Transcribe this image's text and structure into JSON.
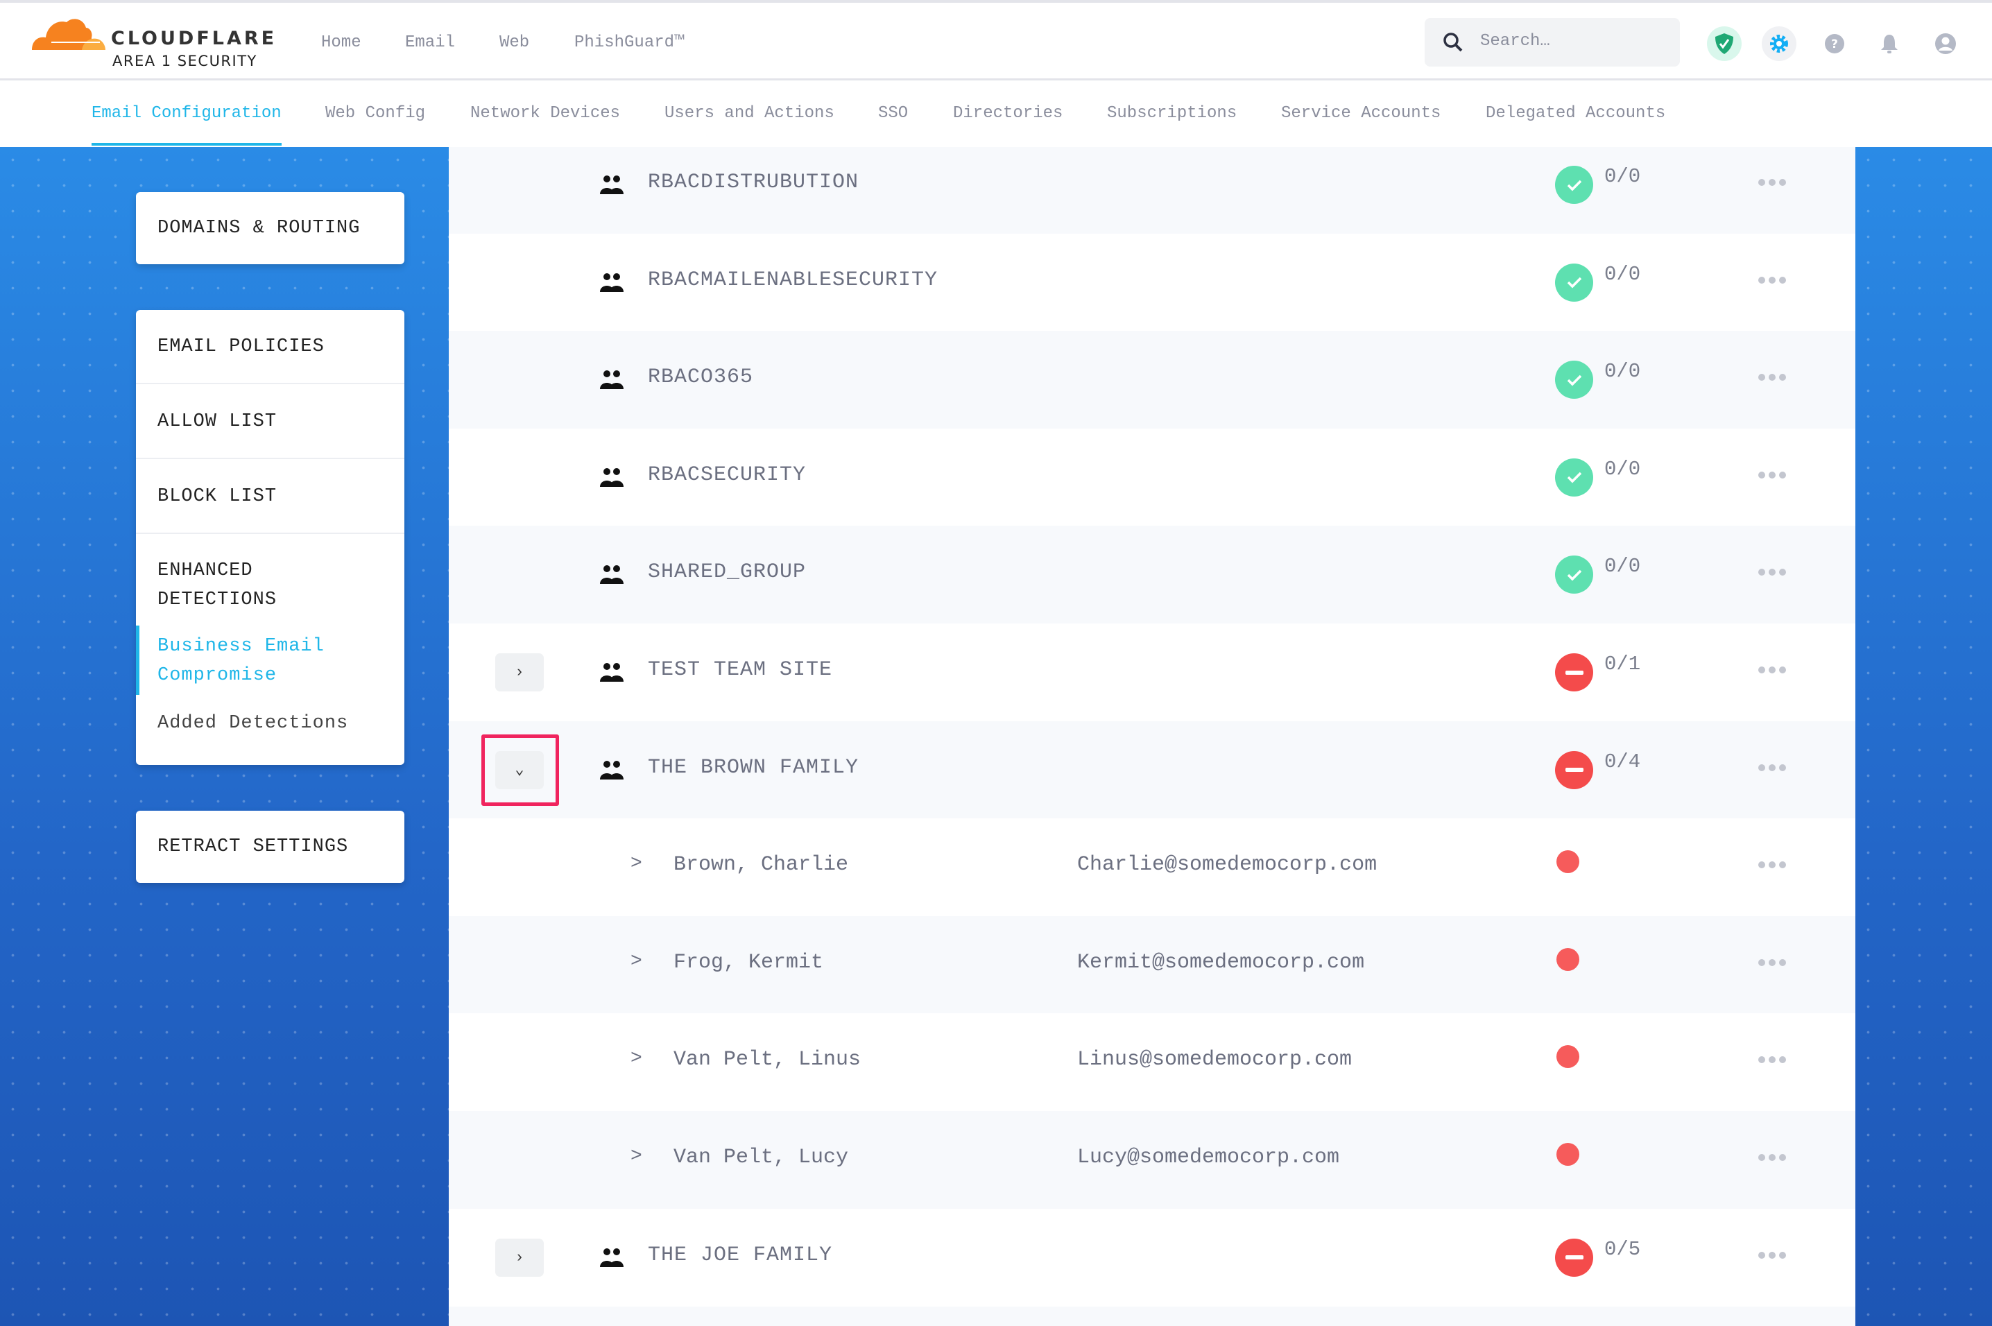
{
  "brand": {
    "name": "CLOUDFLARE",
    "product": "AREA 1 SECURITY"
  },
  "topnav": [
    "Home",
    "Email",
    "Web",
    "PhishGuard™"
  ],
  "search": {
    "placeholder": "Search…"
  },
  "header_icons": [
    "shield-check-icon",
    "gear-icon",
    "help-icon",
    "bell-icon",
    "user-icon"
  ],
  "tabs": [
    {
      "label": "Email Configuration",
      "active": true
    },
    {
      "label": "Web Config"
    },
    {
      "label": "Network Devices"
    },
    {
      "label": "Users and Actions"
    },
    {
      "label": "SSO"
    },
    {
      "label": "Directories"
    },
    {
      "label": "Subscriptions"
    },
    {
      "label": "Service Accounts"
    },
    {
      "label": "Delegated Accounts"
    }
  ],
  "sidebar": {
    "domains": "DOMAINS & ROUTING",
    "email_policies": "EMAIL POLICIES",
    "allow_list": "ALLOW LIST",
    "block_list": "BLOCK LIST",
    "enhanced": "ENHANCED DETECTIONS",
    "bec": "Business Email Compromise",
    "added": "Added Detections",
    "retract": "RETRACT SETTINGS"
  },
  "colors": {
    "accent": "#1fb6e8",
    "ok": "#5ee0b0",
    "error": "#f44b4b",
    "highlight": "#f0245e"
  },
  "rows": [
    {
      "type": "group",
      "name": "RBACDISTRUBUTION",
      "status": "ok",
      "count": "0/0"
    },
    {
      "type": "group",
      "name": "RBACMAILENABLESECURITY",
      "status": "ok",
      "count": "0/0"
    },
    {
      "type": "group",
      "name": "RBACO365",
      "status": "ok",
      "count": "0/0"
    },
    {
      "type": "group",
      "name": "RBACSECURITY",
      "status": "ok",
      "count": "0/0"
    },
    {
      "type": "group",
      "name": "SHARED_GROUP",
      "status": "ok",
      "count": "0/0"
    },
    {
      "type": "group",
      "name": "TEST TEAM SITE",
      "status": "error",
      "count": "0/1",
      "expander": "collapsed"
    },
    {
      "type": "group",
      "name": "THE BROWN FAMILY",
      "status": "error",
      "count": "0/4",
      "expander": "expanded"
    },
    {
      "type": "member",
      "name": "Brown, Charlie",
      "email": "Charlie@somedemocorp.com"
    },
    {
      "type": "member",
      "name": "Frog, Kermit",
      "email": "Kermit@somedemocorp.com"
    },
    {
      "type": "member",
      "name": "Van Pelt, Linus",
      "email": "Linus@somedemocorp.com"
    },
    {
      "type": "member",
      "name": "Van Pelt, Lucy",
      "email": "Lucy@somedemocorp.com"
    },
    {
      "type": "group",
      "name": "THE JOE FAMILY",
      "status": "error",
      "count": "0/5",
      "expander": "collapsed"
    }
  ]
}
